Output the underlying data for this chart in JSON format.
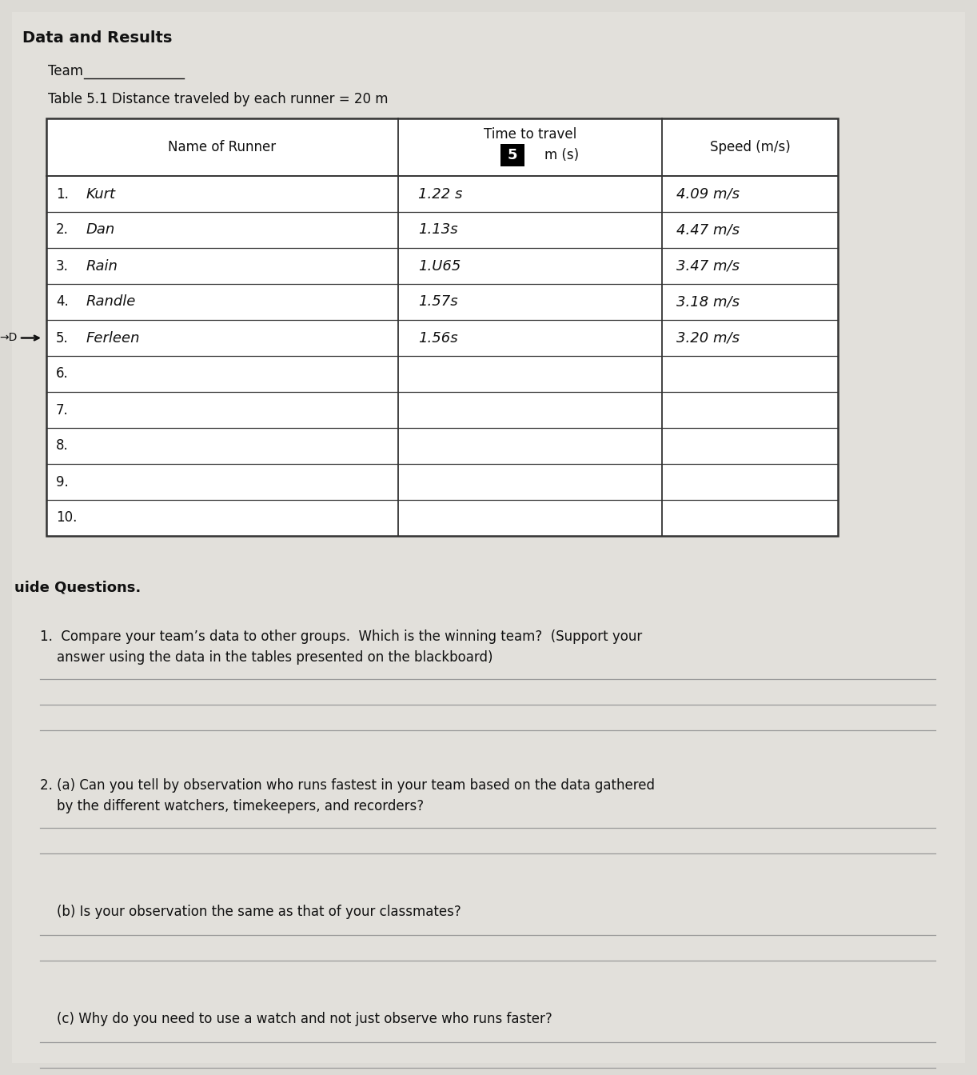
{
  "bg_color": "#c8c8c8",
  "page_color": "#d6d4cf",
  "title": "Data and Results",
  "team_label": "Team",
  "table_caption": "Table 5.1 Distance traveled by each runner = 20 m",
  "col1_header": "Name of Runner",
  "col2_header_line1": "Time to travel",
  "col2_header_num": "5",
  "col2_header_line2": "m (s)",
  "col3_header": "Speed (m/s)",
  "rows": [
    {
      "num": "1.",
      "name": "Kurt",
      "time": "1.22 s",
      "speed": "4.09 m/s"
    },
    {
      "num": "2.",
      "name": "Dan",
      "time": "1.13s",
      "speed": "4.47 m/s"
    },
    {
      "num": "3.",
      "name": "Rain",
      "time": "1.U65",
      "speed": "3.47 m/s"
    },
    {
      "num": "4.",
      "name": "Randle",
      "time": "1.57s",
      "speed": "3.18 m/s"
    },
    {
      "num": "5.",
      "name": "Ferleen",
      "time": "1.56s",
      "speed": "3.20 m/s"
    },
    {
      "num": "6.",
      "name": "",
      "time": "",
      "speed": ""
    },
    {
      "num": "7.",
      "name": "",
      "time": "",
      "speed": ""
    },
    {
      "num": "8.",
      "name": "",
      "time": "",
      "speed": ""
    },
    {
      "num": "9.",
      "name": "",
      "time": "",
      "speed": ""
    },
    {
      "num": "10.",
      "name": "",
      "time": "",
      "speed": ""
    }
  ],
  "arrow_row_idx": 4,
  "section2_title": "uide Questions.",
  "q1_line1": "1.  Compare your team’s data to other groups.  Which is the winning team?  (Support your",
  "q1_line2": "    answer using the data in the tables presented on the blackboard)",
  "q1_answer_lines": 3,
  "q2a_line1": "2. (a) Can you tell by observation who runs fastest in your team based on the data gathered",
  "q2a_line2": "    by the different watchers, timekeepers, and recorders?",
  "q2a_answer_lines": 2,
  "q2b_text": "    (b) Is your observation the same as that of your classmates?",
  "q2b_answer_lines": 2,
  "q2c_text": "    (c) Why do you need to use a watch and not just observe who runs faster?",
  "q2c_answer_lines": 2,
  "fc": "#111111",
  "line_color": "#999999",
  "table_border_color": "#333333"
}
